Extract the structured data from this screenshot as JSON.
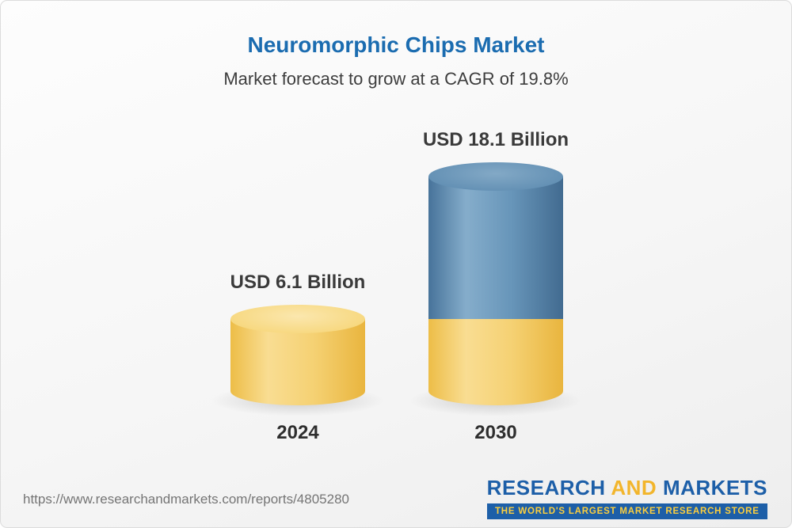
{
  "header": {
    "title": "Neuromorphic Chips Market",
    "subtitle": "Market forecast to grow at a CAGR of 19.8%"
  },
  "chart_data": {
    "type": "bar",
    "style": "3d-cylinder",
    "categories": [
      "2024",
      "2030"
    ],
    "values": [
      6.1,
      18.1
    ],
    "value_labels": [
      "USD 6.1 Billion",
      "USD 18.1 Billion"
    ],
    "unit": "USD Billion",
    "cagr": "19.8%",
    "ylim": [
      0,
      20
    ],
    "grid": false,
    "legend": "none",
    "colors": {
      "base_segment_yellow": "#F3CD68",
      "growth_segment_blue": "#5F8FB3",
      "title_blue": "#1B6CB0",
      "label_text": "#3A3A3A"
    },
    "notes": "2030 cylinder is stacked: yellow base equal to 2024 value (6.1) plus blue growth segment up to 18.1"
  },
  "footer": {
    "url": "https://www.researchandmarkets.com/reports/4805280",
    "logo": {
      "word1": "RESEARCH",
      "word2": "AND",
      "word3": "MARKETS",
      "tagline": "THE WORLD'S LARGEST MARKET RESEARCH STORE"
    }
  }
}
